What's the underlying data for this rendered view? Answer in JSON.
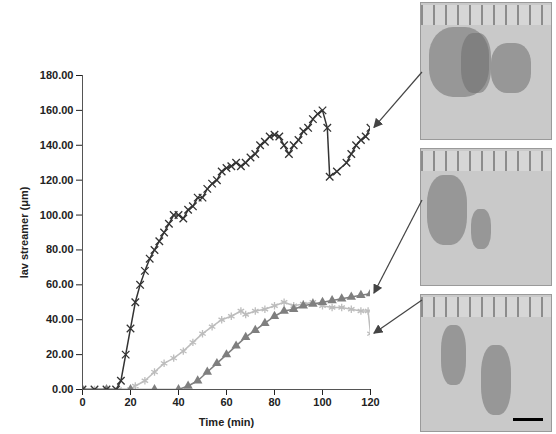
{
  "chart_data": {
    "type": "line",
    "x_label": "Time (min)",
    "y_label": "lav streamer (μm)",
    "xlim": [
      0,
      120
    ],
    "xticks": [
      0,
      20,
      40,
      60,
      80,
      100,
      120
    ],
    "ylim": [
      0,
      180
    ],
    "yticks": [
      {
        "value": 0,
        "label": "0.00"
      },
      {
        "value": 20,
        "label": "20.00"
      },
      {
        "value": 40,
        "label": "40.00"
      },
      {
        "value": 60,
        "label": "60.00"
      },
      {
        "value": 80,
        "label": "80.00"
      },
      {
        "value": 100,
        "label": "100.00"
      },
      {
        "value": 120,
        "label": "120.00"
      },
      {
        "value": 140,
        "label": "140.00"
      },
      {
        "value": 160,
        "label": "160.00"
      },
      {
        "value": 180,
        "label": "180.00"
      }
    ],
    "grid": false,
    "series": [
      {
        "color": "#bdbdbd",
        "marker": "asterisk",
        "line_style": "solid",
        "x": [
          0,
          5,
          10,
          15,
          20,
          22,
          26,
          30,
          34,
          38,
          42,
          46,
          50,
          54,
          58,
          62,
          66,
          68,
          72,
          76,
          80,
          84,
          88,
          92,
          96,
          100,
          104,
          108,
          112,
          116,
          119,
          120
        ],
        "values": [
          0,
          0,
          0,
          0,
          0,
          2,
          5,
          10,
          15,
          18,
          22,
          27,
          32,
          36,
          40,
          42,
          45,
          43,
          45,
          46,
          48,
          50,
          48,
          49,
          50,
          48,
          47,
          47,
          46,
          45,
          45,
          32
        ]
      },
      {
        "color": "#7f7f7f",
        "marker": "triangle",
        "line_style": "solid",
        "x": [
          0,
          10,
          20,
          30,
          40,
          44,
          48,
          52,
          56,
          60,
          64,
          68,
          72,
          76,
          80,
          84,
          88,
          92,
          96,
          100,
          104,
          108,
          112,
          116,
          120
        ],
        "values": [
          0,
          0,
          0,
          0,
          0,
          2,
          5,
          10,
          15,
          20,
          25,
          30,
          34,
          38,
          42,
          45,
          46,
          48,
          49,
          50,
          51,
          52,
          53,
          54,
          55
        ]
      },
      {
        "color": "#333333",
        "marker": "times",
        "line_style": "solid",
        "x": [
          0,
          5,
          10,
          14,
          16,
          18,
          20,
          22,
          24,
          26,
          28,
          30,
          32,
          34,
          36,
          38,
          40,
          42,
          44,
          46,
          48,
          50,
          52,
          54,
          56,
          58,
          60,
          62,
          64,
          66,
          68,
          70,
          72,
          74,
          76,
          78,
          80,
          82,
          84,
          86,
          88,
          90,
          92,
          94,
          96,
          98,
          100,
          102,
          103,
          106,
          110,
          112,
          114,
          116,
          118,
          120
        ],
        "values": [
          0,
          0,
          0,
          0,
          5,
          20,
          35,
          50,
          60,
          68,
          75,
          80,
          85,
          90,
          95,
          100,
          100,
          98,
          103,
          105,
          110,
          110,
          115,
          118,
          120,
          125,
          127,
          128,
          130,
          128,
          130,
          133,
          135,
          140,
          142,
          145,
          146,
          145,
          140,
          135,
          140,
          143,
          148,
          150,
          155,
          158,
          160,
          150,
          122,
          125,
          130,
          135,
          140,
          143,
          145,
          150
        ]
      }
    ]
  }
}
